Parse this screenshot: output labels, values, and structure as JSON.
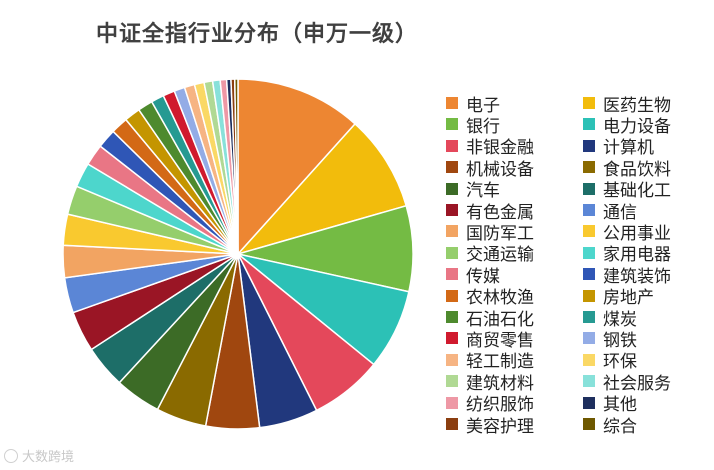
{
  "chart_data": {
    "type": "pie",
    "title": "中证全指行业分布（申万一级）",
    "legend_position": "right",
    "slices": [
      {
        "label": "电子",
        "value": 11.8,
        "color": "#ED8632"
      },
      {
        "label": "医药生物",
        "value": 9.0,
        "color": "#F2BC0C"
      },
      {
        "label": "银行",
        "value": 8.0,
        "color": "#74BB44"
      },
      {
        "label": "电力设备",
        "value": 7.5,
        "color": "#2CC1B6"
      },
      {
        "label": "非银金融",
        "value": 6.8,
        "color": "#E4485B"
      },
      {
        "label": "计算机",
        "value": 5.5,
        "color": "#21387D"
      },
      {
        "label": "机械设备",
        "value": 5.0,
        "color": "#A0470F"
      },
      {
        "label": "食品饮料",
        "value": 4.7,
        "color": "#8A6A00"
      },
      {
        "label": "汽车",
        "value": 4.3,
        "color": "#3C6B26"
      },
      {
        "label": "基础化工",
        "value": 4.0,
        "color": "#1D6E68"
      },
      {
        "label": "有色金属",
        "value": 3.8,
        "color": "#9A1525"
      },
      {
        "label": "通信",
        "value": 3.3,
        "color": "#5B86D6"
      },
      {
        "label": "国防军工",
        "value": 3.0,
        "color": "#F2A462"
      },
      {
        "label": "公用事业",
        "value": 2.9,
        "color": "#F9C92F"
      },
      {
        "label": "交通运输",
        "value": 2.7,
        "color": "#95CE6C"
      },
      {
        "label": "家用电器",
        "value": 2.3,
        "color": "#4DD6CC"
      },
      {
        "label": "传媒",
        "value": 2.0,
        "color": "#E97685"
      },
      {
        "label": "建筑装饰",
        "value": 1.8,
        "color": "#2F56B6"
      },
      {
        "label": "农林牧渔",
        "value": 1.6,
        "color": "#D36916"
      },
      {
        "label": "房地产",
        "value": 1.5,
        "color": "#C49500"
      },
      {
        "label": "石油石化",
        "value": 1.4,
        "color": "#4E8A2E"
      },
      {
        "label": "煤炭",
        "value": 1.2,
        "color": "#269A92"
      },
      {
        "label": "商贸零售",
        "value": 1.1,
        "color": "#D01A2E"
      },
      {
        "label": "钢铁",
        "value": 1.0,
        "color": "#93ACE6"
      },
      {
        "label": "轻工制造",
        "value": 0.95,
        "color": "#F6B483"
      },
      {
        "label": "环保",
        "value": 0.9,
        "color": "#FAD865"
      },
      {
        "label": "建筑材料",
        "value": 0.8,
        "color": "#B0D994"
      },
      {
        "label": "社会服务",
        "value": 0.7,
        "color": "#88E1DA"
      },
      {
        "label": "纺织服饰",
        "value": 0.6,
        "color": "#EE98A5"
      },
      {
        "label": "其他",
        "value": 0.4,
        "color": "#1E2F5E"
      },
      {
        "label": "美容护理",
        "value": 0.35,
        "color": "#8B3E10"
      },
      {
        "label": "综合",
        "value": 0.3,
        "color": "#6E5800"
      }
    ]
  },
  "watermark": {
    "text": "大数跨境",
    "icon": "logo-icon"
  }
}
